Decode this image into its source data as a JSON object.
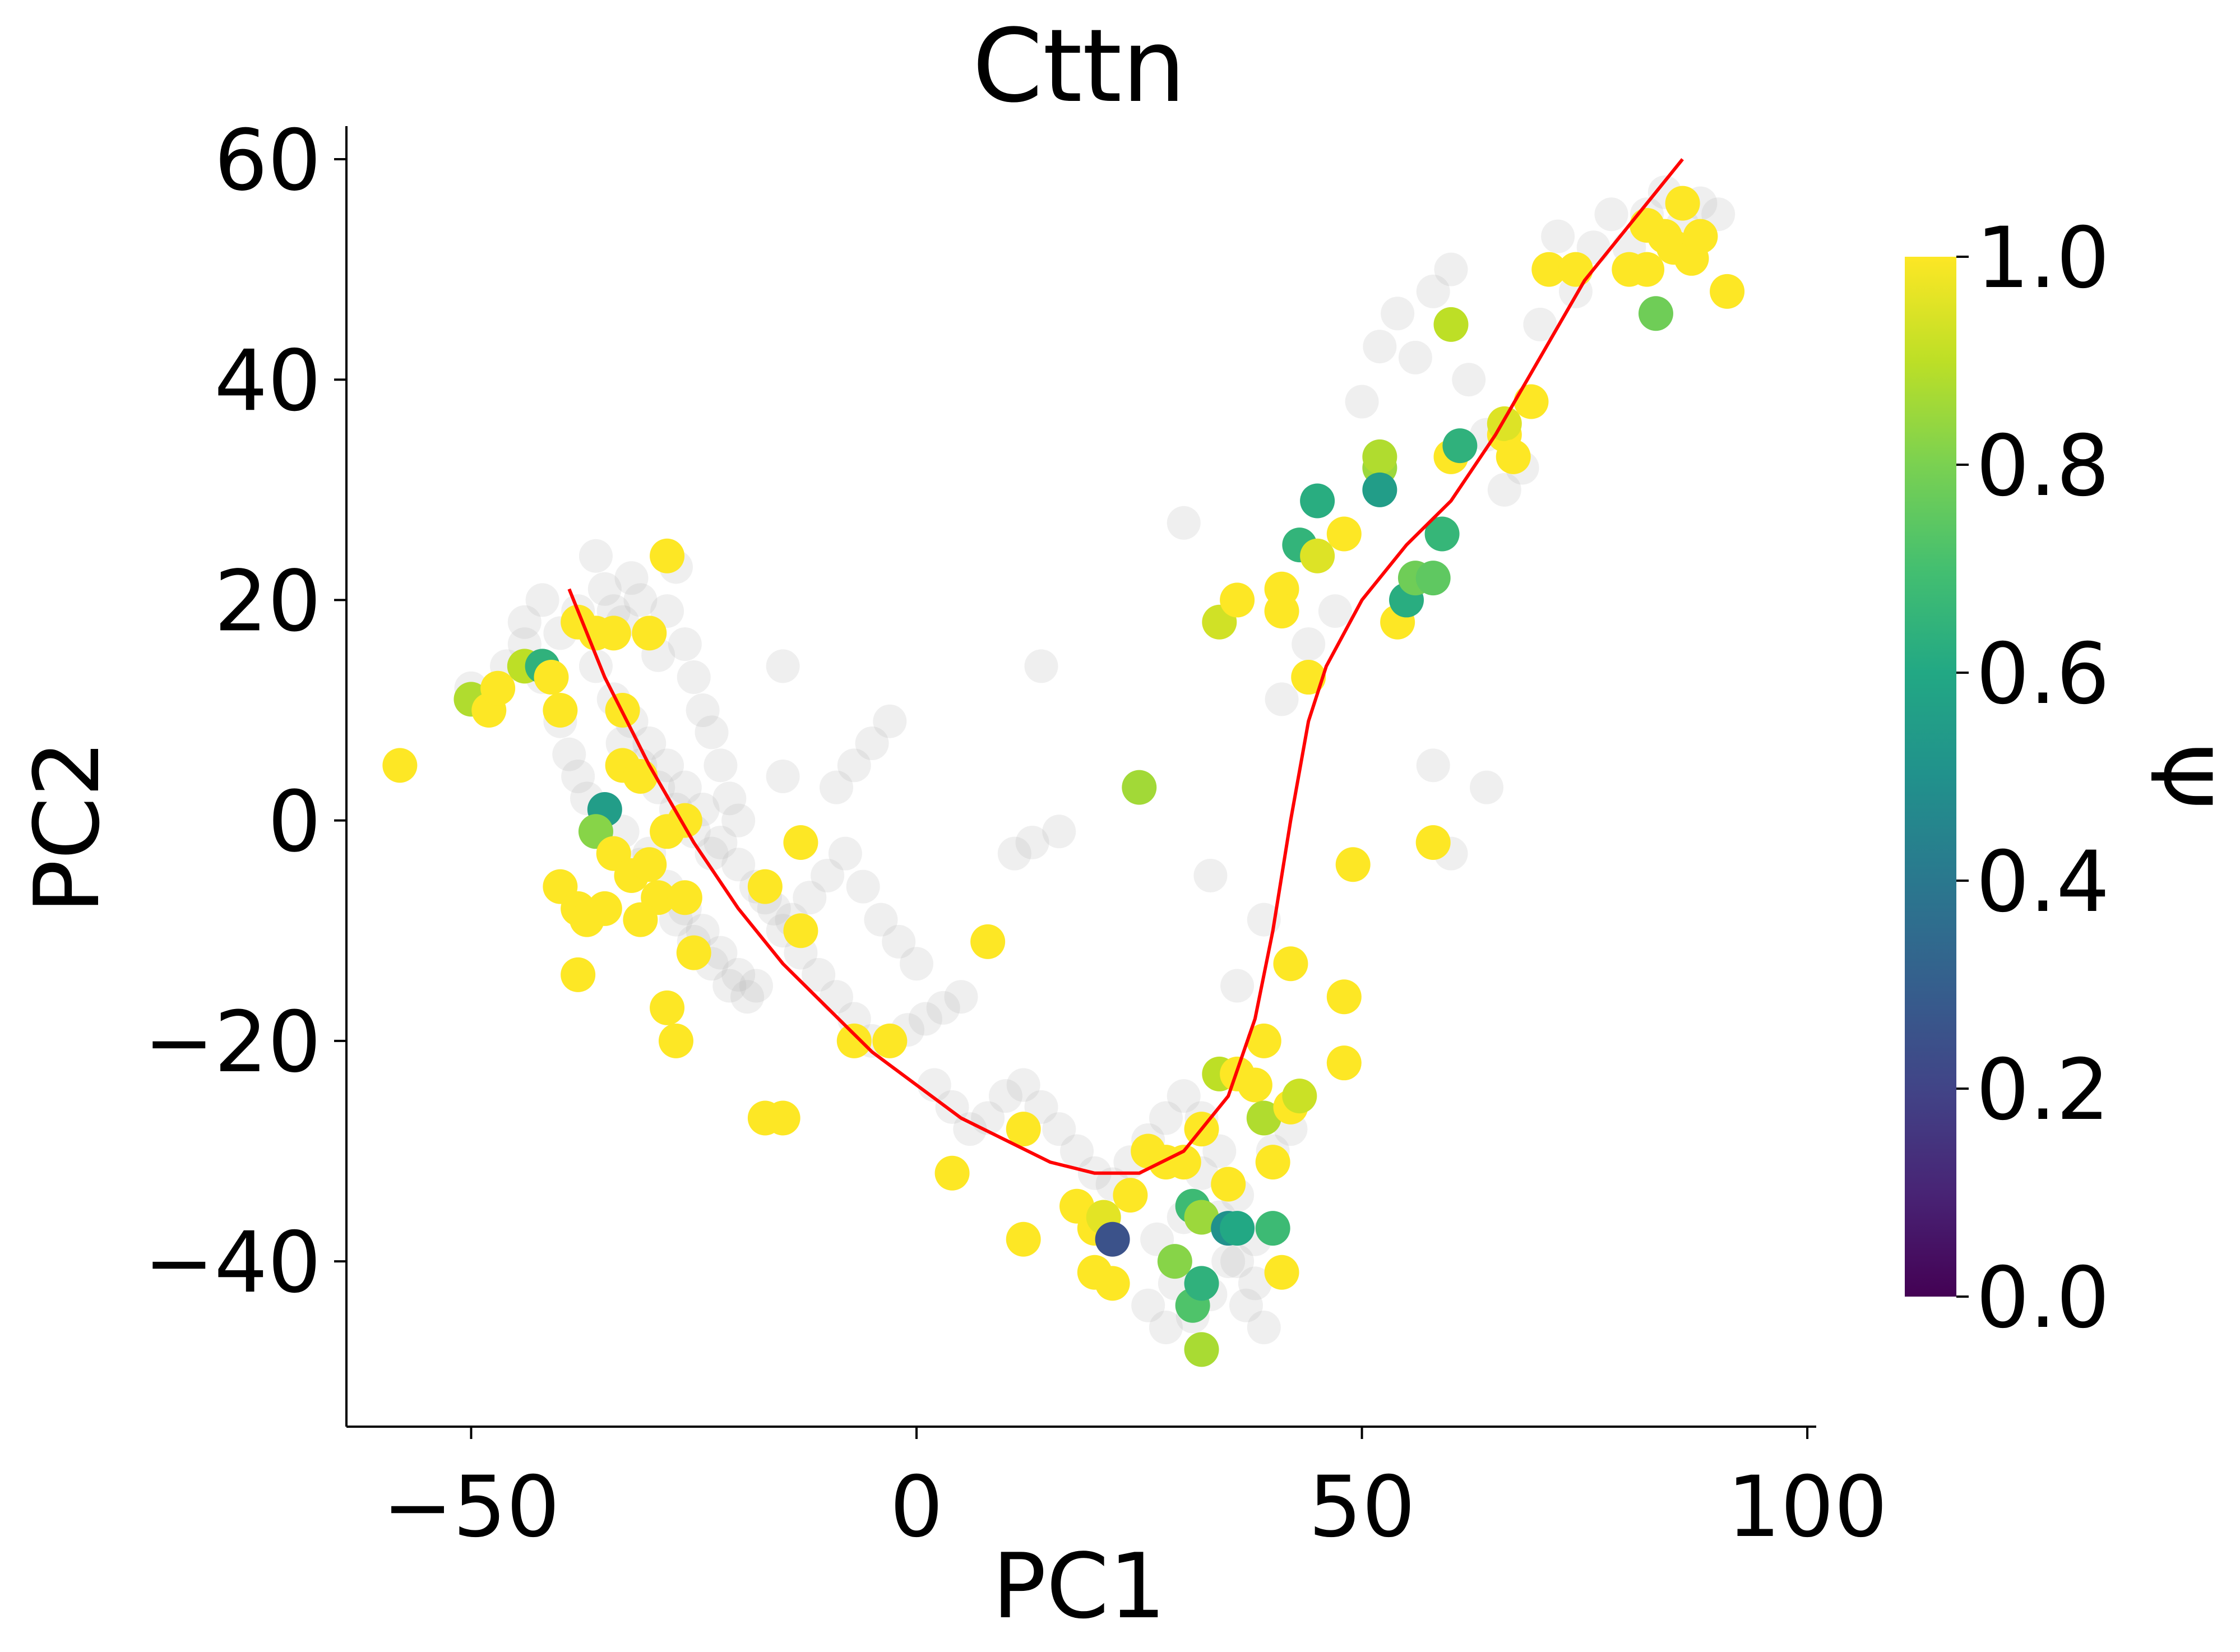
{
  "chart_data": {
    "type": "scatter",
    "title": "Cttn",
    "xlabel": "PC1",
    "ylabel": "PC2",
    "xlim": [
      -64,
      101
    ],
    "ylim": [
      -55,
      63
    ],
    "xticks": [
      -50,
      0,
      50,
      100
    ],
    "xtick_labels": [
      "−50",
      "0",
      "50",
      "100"
    ],
    "yticks": [
      -40,
      -20,
      0,
      20,
      40,
      60
    ],
    "ytick_labels": [
      "−40",
      "−20",
      "0",
      "20",
      "40",
      "60"
    ],
    "grid": false,
    "colorbar": {
      "label": "Ψ",
      "colormap": "viridis",
      "range": [
        0.0,
        1.0
      ],
      "ticks": [
        "0.0",
        "0.2",
        "0.4",
        "0.6",
        "0.8",
        "1.0"
      ]
    },
    "colors": {
      "background_points": "#b4b4b4",
      "trend_line": "#ff0000"
    },
    "background_points": [
      [
        -50,
        12
      ],
      [
        -48,
        11
      ],
      [
        -46,
        14
      ],
      [
        -44,
        16
      ],
      [
        -42,
        13
      ],
      [
        -40,
        9
      ],
      [
        -39,
        6
      ],
      [
        -38,
        4
      ],
      [
        -37,
        2
      ],
      [
        -36,
        24
      ],
      [
        -35,
        21
      ],
      [
        -34,
        19
      ],
      [
        -33,
        18
      ],
      [
        -32,
        22
      ],
      [
        -31,
        20
      ],
      [
        -30,
        17
      ],
      [
        -29,
        15
      ],
      [
        -28,
        19
      ],
      [
        -27,
        23
      ],
      [
        -26,
        16
      ],
      [
        -25,
        13
      ],
      [
        -24,
        10
      ],
      [
        -23,
        8
      ],
      [
        -22,
        5
      ],
      [
        -21,
        2
      ],
      [
        -20,
        0
      ],
      [
        -36,
        14
      ],
      [
        -34,
        11
      ],
      [
        -32,
        9
      ],
      [
        -30,
        7
      ],
      [
        -28,
        5
      ],
      [
        -26,
        3
      ],
      [
        -24,
        1
      ],
      [
        -22,
        -2
      ],
      [
        -20,
        -4
      ],
      [
        -18,
        -6
      ],
      [
        -16,
        -8
      ],
      [
        -14,
        -9
      ],
      [
        -12,
        -7
      ],
      [
        -10,
        -5
      ],
      [
        -8,
        -3
      ],
      [
        -6,
        -6
      ],
      [
        -4,
        -9
      ],
      [
        -2,
        -11
      ],
      [
        0,
        -13
      ],
      [
        -30,
        -3
      ],
      [
        -28,
        -6
      ],
      [
        -26,
        -8
      ],
      [
        -24,
        -10
      ],
      [
        -22,
        -12
      ],
      [
        -20,
        -14
      ],
      [
        -18,
        -15
      ],
      [
        -35,
        1
      ],
      [
        -33,
        -1
      ],
      [
        -31,
        -4
      ],
      [
        -29,
        -7
      ],
      [
        -27,
        -9
      ],
      [
        -25,
        -11
      ],
      [
        -23,
        -13
      ],
      [
        -21,
        -15
      ],
      [
        -19,
        -16
      ],
      [
        -40,
        17
      ],
      [
        -38,
        19
      ],
      [
        -42,
        20
      ],
      [
        -44,
        18
      ],
      [
        -33,
        7
      ],
      [
        -31,
        5
      ],
      [
        -29,
        3
      ],
      [
        -27,
        1
      ],
      [
        -25,
        -1
      ],
      [
        -23,
        -3
      ],
      [
        -17,
        -7
      ],
      [
        -15,
        -10
      ],
      [
        -13,
        -12
      ],
      [
        -11,
        -14
      ],
      [
        -9,
        -16
      ],
      [
        -7,
        -18
      ],
      [
        -5,
        -20
      ],
      [
        -3,
        -20
      ],
      [
        -1,
        -19
      ],
      [
        1,
        -18
      ],
      [
        3,
        -17
      ],
      [
        5,
        -16
      ],
      [
        2,
        -24
      ],
      [
        4,
        -26
      ],
      [
        6,
        -28
      ],
      [
        8,
        -27
      ],
      [
        10,
        -25
      ],
      [
        12,
        -24
      ],
      [
        14,
        -26
      ],
      [
        16,
        -28
      ],
      [
        18,
        -30
      ],
      [
        20,
        -32
      ],
      [
        22,
        -33
      ],
      [
        24,
        -31
      ],
      [
        26,
        -29
      ],
      [
        28,
        -27
      ],
      [
        30,
        -25
      ],
      [
        32,
        -27
      ],
      [
        34,
        -30
      ],
      [
        36,
        -34
      ],
      [
        38,
        -38
      ],
      [
        27,
        -38
      ],
      [
        29,
        -42
      ],
      [
        31,
        -45
      ],
      [
        33,
        -43
      ],
      [
        35,
        -40
      ],
      [
        37,
        -44
      ],
      [
        39,
        -46
      ],
      [
        26,
        -44
      ],
      [
        28,
        -46
      ],
      [
        30,
        -36
      ],
      [
        32,
        -32
      ],
      [
        34,
        -36
      ],
      [
        36,
        -40
      ],
      [
        38,
        -42
      ],
      [
        40,
        -30
      ],
      [
        42,
        -28
      ],
      [
        -15,
        14
      ],
      [
        -15,
        4
      ],
      [
        14,
        14
      ],
      [
        -3,
        9
      ],
      [
        -5,
        7
      ],
      [
        -7,
        5
      ],
      [
        -9,
        3
      ],
      [
        11,
        -3
      ],
      [
        13,
        -2
      ],
      [
        16,
        -1
      ],
      [
        30,
        27
      ],
      [
        33,
        -5
      ],
      [
        36,
        -15
      ],
      [
        39,
        -9
      ],
      [
        41,
        11
      ],
      [
        44,
        16
      ],
      [
        47,
        19
      ],
      [
        50,
        38
      ],
      [
        52,
        43
      ],
      [
        54,
        46
      ],
      [
        56,
        42
      ],
      [
        58,
        48
      ],
      [
        60,
        50
      ],
      [
        62,
        40
      ],
      [
        64,
        35
      ],
      [
        66,
        30
      ],
      [
        68,
        32
      ],
      [
        70,
        45
      ],
      [
        72,
        53
      ],
      [
        74,
        48
      ],
      [
        76,
        52
      ],
      [
        78,
        55
      ],
      [
        80,
        52
      ],
      [
        82,
        55
      ],
      [
        84,
        57
      ],
      [
        86,
        54
      ],
      [
        88,
        56
      ],
      [
        90,
        55
      ],
      [
        64,
        3
      ],
      [
        60,
        -3
      ],
      [
        58,
        5
      ]
    ],
    "colored_points": [
      [
        -58,
        5,
        1.0
      ],
      [
        -50,
        11,
        0.88
      ],
      [
        -48,
        10,
        1.0
      ],
      [
        -47,
        12,
        1.0
      ],
      [
        -44,
        14,
        0.9
      ],
      [
        -42,
        14,
        0.64
      ],
      [
        -41,
        13,
        1.0
      ],
      [
        -40,
        10,
        1.0
      ],
      [
        -38,
        18,
        1.0
      ],
      [
        -36,
        17,
        1.0
      ],
      [
        -34,
        17,
        1.0
      ],
      [
        -28,
        24,
        1.0
      ],
      [
        -30,
        17,
        1.0
      ],
      [
        -33,
        10,
        1.0
      ],
      [
        -33,
        5,
        1.0
      ],
      [
        -31,
        4,
        1.0
      ],
      [
        -35,
        1,
        0.55
      ],
      [
        -36,
        -1,
        0.82
      ],
      [
        -34,
        -3,
        1.0
      ],
      [
        -32,
        -5,
        1.0
      ],
      [
        -30,
        -4,
        1.0
      ],
      [
        -28,
        -1,
        1.0
      ],
      [
        -26,
        0,
        1.0
      ],
      [
        -29,
        -7,
        1.0
      ],
      [
        -26,
        -7,
        1.0
      ],
      [
        -40,
        -6,
        1.0
      ],
      [
        -38,
        -8,
        1.0
      ],
      [
        -37,
        -9,
        1.0
      ],
      [
        -35,
        -8,
        1.0
      ],
      [
        -31,
        -9,
        1.0
      ],
      [
        -25,
        -12,
        1.0
      ],
      [
        -38,
        -14,
        1.0
      ],
      [
        -28,
        -17,
        1.0
      ],
      [
        -27,
        -20,
        1.0
      ],
      [
        -13,
        -2,
        1.0
      ],
      [
        -13,
        -10,
        1.0
      ],
      [
        -17,
        -6,
        1.0
      ],
      [
        -7,
        -20,
        1.0
      ],
      [
        -3,
        -20,
        1.0
      ],
      [
        -17,
        -27,
        1.0
      ],
      [
        -15,
        -27,
        1.0
      ],
      [
        4,
        -32,
        1.0
      ],
      [
        8,
        -11,
        1.0
      ],
      [
        12,
        -28,
        1.0
      ],
      [
        12,
        -38,
        1.0
      ],
      [
        18,
        -35,
        1.0
      ],
      [
        20,
        -37,
        1.0
      ],
      [
        21,
        -36,
        0.96
      ],
      [
        22,
        -38,
        0.25
      ],
      [
        20,
        -41,
        1.0
      ],
      [
        22,
        -42,
        1.0
      ],
      [
        24,
        -34,
        1.0
      ],
      [
        26,
        -30,
        1.0
      ],
      [
        28,
        -31,
        1.0
      ],
      [
        30,
        -31,
        1.0
      ],
      [
        32,
        -28,
        1.0
      ],
      [
        31,
        -35,
        0.68
      ],
      [
        32,
        -36,
        0.85
      ],
      [
        31,
        -44,
        0.72
      ],
      [
        32,
        -42,
        0.64
      ],
      [
        32,
        -48,
        0.87
      ],
      [
        29,
        -40,
        0.82
      ],
      [
        35,
        -37,
        0.5
      ],
      [
        36,
        -37,
        0.6
      ],
      [
        35,
        -33,
        1.0
      ],
      [
        34,
        -23,
        0.9
      ],
      [
        36,
        -23,
        1.0
      ],
      [
        38,
        -24,
        1.0
      ],
      [
        39,
        -20,
        1.0
      ],
      [
        39,
        -27,
        0.88
      ],
      [
        40,
        -31,
        1.0
      ],
      [
        40,
        -37,
        0.68
      ],
      [
        41,
        -41,
        1.0
      ],
      [
        42,
        -26,
        1.0
      ],
      [
        43,
        -25,
        0.92
      ],
      [
        42,
        -13,
        1.0
      ],
      [
        48,
        -16,
        1.0
      ],
      [
        48,
        -22,
        1.0
      ],
      [
        49,
        -4,
        1.0
      ],
      [
        58,
        -2,
        1.0
      ],
      [
        25,
        3,
        0.86
      ],
      [
        34,
        18,
        0.93
      ],
      [
        36,
        20,
        1.0
      ],
      [
        41,
        21,
        1.0
      ],
      [
        41,
        19,
        1.0
      ],
      [
        44,
        13,
        1.0
      ],
      [
        43,
        25,
        0.65
      ],
      [
        45,
        24,
        0.95
      ],
      [
        45,
        29,
        0.62
      ],
      [
        48,
        26,
        1.0
      ],
      [
        52,
        32,
        0.85
      ],
      [
        52,
        33,
        0.88
      ],
      [
        52,
        30,
        0.55
      ],
      [
        54,
        18,
        1.0
      ],
      [
        55,
        20,
        0.62
      ],
      [
        56,
        22,
        0.78
      ],
      [
        58,
        22,
        0.75
      ],
      [
        59,
        26,
        0.66
      ],
      [
        60,
        33,
        1.0
      ],
      [
        61,
        34,
        0.64
      ],
      [
        60,
        45,
        0.9
      ],
      [
        66,
        35,
        1.0
      ],
      [
        66,
        36,
        0.95
      ],
      [
        67,
        33,
        1.0
      ],
      [
        69,
        38,
        1.0
      ],
      [
        71,
        50,
        1.0
      ],
      [
        74,
        50,
        1.0
      ],
      [
        80,
        50,
        1.0
      ],
      [
        82,
        50,
        1.0
      ],
      [
        82,
        54,
        1.0
      ],
      [
        83,
        46,
        0.78
      ],
      [
        84,
        53,
        1.0
      ],
      [
        85,
        52,
        1.0
      ],
      [
        86,
        56,
        1.0
      ],
      [
        87,
        51,
        1.0
      ],
      [
        88,
        53,
        1.0
      ],
      [
        91,
        48,
        1.0
      ]
    ],
    "trend_line": [
      [
        -39,
        21
      ],
      [
        -35,
        13
      ],
      [
        -30,
        5
      ],
      [
        -25,
        -2
      ],
      [
        -20,
        -8
      ],
      [
        -15,
        -13
      ],
      [
        -10,
        -17
      ],
      [
        -5,
        -21
      ],
      [
        0,
        -24
      ],
      [
        5,
        -27
      ],
      [
        10,
        -29
      ],
      [
        15,
        -31
      ],
      [
        20,
        -32
      ],
      [
        25,
        -32
      ],
      [
        30,
        -30
      ],
      [
        35,
        -25
      ],
      [
        38,
        -18
      ],
      [
        40,
        -10
      ],
      [
        42,
        0
      ],
      [
        44,
        9
      ],
      [
        46,
        14
      ],
      [
        50,
        20
      ],
      [
        55,
        25
      ],
      [
        60,
        29
      ],
      [
        65,
        35
      ],
      [
        70,
        42
      ],
      [
        75,
        49
      ],
      [
        80,
        54
      ],
      [
        86,
        60
      ]
    ]
  }
}
